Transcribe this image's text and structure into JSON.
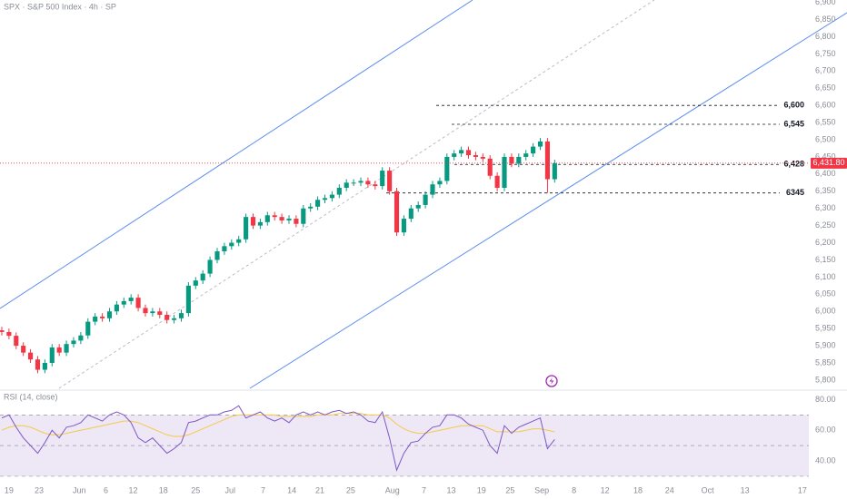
{
  "chart_data": [
    {
      "type": "candlestick",
      "title": "SPX · S&P 500 Index · 4h · SP",
      "x": [
        0,
        1,
        2,
        3,
        4,
        5,
        6,
        7,
        8,
        9,
        10,
        11,
        12,
        13,
        14,
        15,
        16,
        17,
        18,
        19,
        20,
        21,
        22,
        23,
        24,
        25,
        26,
        27,
        28,
        29,
        30,
        31,
        32,
        33,
        34,
        35,
        36,
        37,
        38,
        39,
        40,
        41,
        42,
        43,
        44,
        45,
        46,
        47,
        48,
        49,
        50,
        51,
        52,
        53,
        54,
        55,
        56,
        57,
        58,
        59,
        60,
        61,
        62,
        63,
        64,
        65,
        66,
        67,
        68,
        69,
        70,
        71,
        72,
        73,
        74,
        75,
        76,
        77
      ],
      "open": [
        5945,
        5940,
        5929,
        5900,
        5880,
        5860,
        5830,
        5850,
        5895,
        5880,
        5905,
        5915,
        5930,
        5970,
        5985,
        5980,
        6000,
        6020,
        6030,
        6040,
        6010,
        5995,
        6000,
        5990,
        5975,
        5980,
        5995,
        6075,
        6090,
        6110,
        6150,
        6175,
        6190,
        6200,
        6210,
        6275,
        6250,
        6260,
        6280,
        6275,
        6265,
        6270,
        6255,
        6300,
        6305,
        6325,
        6330,
        6340,
        6360,
        6375,
        6375,
        6380,
        6370,
        6365,
        6410,
        6350,
        6230,
        6270,
        6300,
        6310,
        6340,
        6370,
        6380,
        6450,
        6460,
        6470,
        6455,
        6450,
        6445,
        6395,
        6360,
        6450,
        6430,
        6450,
        6460,
        6480,
        6495,
        6385
      ],
      "high": [
        5955,
        5950,
        5939,
        5910,
        5890,
        5870,
        5860,
        5905,
        5905,
        5915,
        5925,
        5940,
        5980,
        5995,
        5995,
        6010,
        6030,
        6040,
        6050,
        6050,
        6020,
        6010,
        6010,
        6000,
        5990,
        6005,
        6085,
        6100,
        6120,
        6160,
        6185,
        6200,
        6210,
        6220,
        6285,
        6285,
        6270,
        6290,
        6290,
        6285,
        6280,
        6280,
        6310,
        6315,
        6335,
        6340,
        6350,
        6370,
        6385,
        6385,
        6390,
        6390,
        6380,
        6420,
        6420,
        6360,
        6280,
        6310,
        6320,
        6350,
        6380,
        6390,
        6460,
        6470,
        6480,
        6480,
        6465,
        6460,
        6455,
        6405,
        6460,
        6460,
        6460,
        6470,
        6490,
        6505,
        6505,
        6442
      ],
      "low": [
        5930,
        5919,
        5890,
        5870,
        5850,
        5820,
        5820,
        5840,
        5870,
        5870,
        5895,
        5905,
        5920,
        5960,
        5970,
        5970,
        5990,
        6010,
        6020,
        6000,
        5985,
        5985,
        5980,
        5965,
        5965,
        5970,
        5985,
        6065,
        6080,
        6100,
        6140,
        6165,
        6180,
        6190,
        6200,
        6240,
        6240,
        6250,
        6265,
        6255,
        6255,
        6245,
        6245,
        6290,
        6295,
        6315,
        6320,
        6330,
        6350,
        6365,
        6365,
        6360,
        6355,
        6355,
        6340,
        6220,
        6220,
        6260,
        6290,
        6300,
        6330,
        6360,
        6370,
        6440,
        6450,
        6445,
        6440,
        6435,
        6385,
        6350,
        6350,
        6420,
        6420,
        6440,
        6450,
        6470,
        6345,
        6375
      ],
      "close": [
        5940,
        5929,
        5900,
        5880,
        5860,
        5830,
        5850,
        5895,
        5880,
        5905,
        5915,
        5930,
        5970,
        5985,
        5980,
        6000,
        6020,
        6030,
        6040,
        6010,
        5995,
        6000,
        5990,
        5975,
        5980,
        5995,
        6075,
        6090,
        6110,
        6150,
        6175,
        6190,
        6200,
        6210,
        6275,
        6250,
        6260,
        6280,
        6275,
        6265,
        6270,
        6255,
        6300,
        6305,
        6325,
        6330,
        6340,
        6360,
        6375,
        6375,
        6380,
        6370,
        6365,
        6410,
        6350,
        6230,
        6270,
        6300,
        6310,
        6340,
        6370,
        6380,
        6450,
        6460,
        6470,
        6455,
        6450,
        6445,
        6395,
        6360,
        6450,
        6430,
        6450,
        6460,
        6480,
        6495,
        6385,
        6431.8
      ],
      "up_color": "#089981",
      "down_color": "#f23645",
      "xlim": [
        -0.25,
        112.4
      ],
      "ylim": [
        5776,
        6907
      ],
      "xticks": [
        {
          "value": 1,
          "label": "19"
        },
        {
          "value": 5.2,
          "label": "23"
        },
        {
          "value": 10.8,
          "label": "Jun"
        },
        {
          "value": 14.5,
          "label": "6"
        },
        {
          "value": 18.3,
          "label": "12"
        },
        {
          "value": 22.5,
          "label": "18"
        },
        {
          "value": 27,
          "label": "25"
        },
        {
          "value": 31.8,
          "label": "Jul"
        },
        {
          "value": 36.4,
          "label": "7"
        },
        {
          "value": 40.4,
          "label": "14"
        },
        {
          "value": 44.3,
          "label": "21"
        },
        {
          "value": 48.6,
          "label": "25"
        },
        {
          "value": 54.4,
          "label": "Aug"
        },
        {
          "value": 58.8,
          "label": "7"
        },
        {
          "value": 62.6,
          "label": "13"
        },
        {
          "value": 66.8,
          "label": "19"
        },
        {
          "value": 70.8,
          "label": "25"
        },
        {
          "value": 75.2,
          "label": "Sep"
        },
        {
          "value": 79.7,
          "label": "8"
        },
        {
          "value": 84,
          "label": "12"
        },
        {
          "value": 88.6,
          "label": "18"
        },
        {
          "value": 93,
          "label": "24"
        },
        {
          "value": 98.3,
          "label": "Oct"
        },
        {
          "value": 103.5,
          "label": "13"
        },
        {
          "value": 111.5,
          "label": "17"
        }
      ],
      "yticks": [
        {
          "value": 5800,
          "label": "5,800"
        },
        {
          "value": 5850,
          "label": "5,850"
        },
        {
          "value": 5900,
          "label": "5,900"
        },
        {
          "value": 5950,
          "label": "5,950"
        },
        {
          "value": 6000,
          "label": "6,000"
        },
        {
          "value": 6050,
          "label": "6,050"
        },
        {
          "value": 6100,
          "label": "6,100"
        },
        {
          "value": 6150,
          "label": "6,150"
        },
        {
          "value": 6200,
          "label": "6,200"
        },
        {
          "value": 6250,
          "label": "6,250"
        },
        {
          "value": 6300,
          "label": "6,300"
        },
        {
          "value": 6350,
          "label": "6,350"
        },
        {
          "value": 6400,
          "label": "6,400"
        },
        {
          "value": 6450,
          "label": "6,450"
        },
        {
          "value": 6500,
          "label": "6,500"
        },
        {
          "value": 6550,
          "label": "6,550"
        },
        {
          "value": 6600,
          "label": "6,600"
        },
        {
          "value": 6650,
          "label": "6,650"
        },
        {
          "value": 6700,
          "label": "6,700"
        },
        {
          "value": 6750,
          "label": "6,750"
        },
        {
          "value": 6800,
          "label": "6,800"
        },
        {
          "value": 6850,
          "label": "6,850"
        },
        {
          "value": 6900,
          "label": "6,900"
        }
      ],
      "levels": [
        {
          "value": 6600,
          "label": "6,600"
        },
        {
          "value": 6545,
          "label": "6,545"
        },
        {
          "value": 6428,
          "label": "6,428"
        },
        {
          "value": 6345,
          "label": "6345"
        }
      ],
      "last_price": {
        "value": 6431.8,
        "label": "6,431.80"
      }
    },
    {
      "type": "line",
      "title": "RSI (14, close)",
      "series": [
        {
          "color": "#7e57c2",
          "values": [
            68,
            70,
            62,
            55,
            50,
            45,
            52,
            60,
            55,
            62,
            63,
            65,
            70,
            68,
            66,
            70,
            72,
            70,
            65,
            55,
            52,
            55,
            50,
            45,
            48,
            52,
            65,
            66,
            68,
            70,
            70,
            72,
            73,
            76,
            68,
            70,
            72,
            68,
            66,
            68,
            65,
            70,
            72,
            70,
            72,
            70,
            72,
            73,
            71,
            72,
            70,
            66,
            65,
            72,
            55,
            34,
            45,
            52,
            53,
            58,
            62,
            63,
            70,
            70,
            68,
            64,
            62,
            60,
            50,
            45,
            63,
            58,
            62,
            64,
            66,
            68,
            48,
            54
          ]
        },
        {
          "color": "#f7c948",
          "values": [
            60,
            62,
            63,
            63,
            62,
            60,
            58,
            57,
            57,
            58,
            59,
            60,
            61,
            62,
            63,
            64,
            65,
            66,
            66,
            65,
            63,
            61,
            59,
            57,
            56,
            56,
            57,
            59,
            61,
            63,
            65,
            67,
            69,
            70,
            70,
            70,
            70,
            70,
            70,
            69,
            69,
            69,
            69,
            69,
            70,
            70,
            70,
            71,
            71,
            71,
            71,
            70,
            70,
            70,
            68,
            64,
            61,
            59,
            58,
            58,
            59,
            60,
            61,
            62,
            63,
            63,
            63,
            63,
            61,
            59,
            59,
            59,
            59,
            60,
            61,
            61,
            60,
            59
          ]
        }
      ],
      "ylim": [
        27,
        85
      ],
      "yticks": [
        {
          "value": 40,
          "label": "40.00"
        },
        {
          "value": 60,
          "label": "60.00"
        },
        {
          "value": 80,
          "label": "80.00"
        }
      ],
      "bands": [
        70,
        50,
        30
      ],
      "band_color": "#ede7f6"
    }
  ]
}
